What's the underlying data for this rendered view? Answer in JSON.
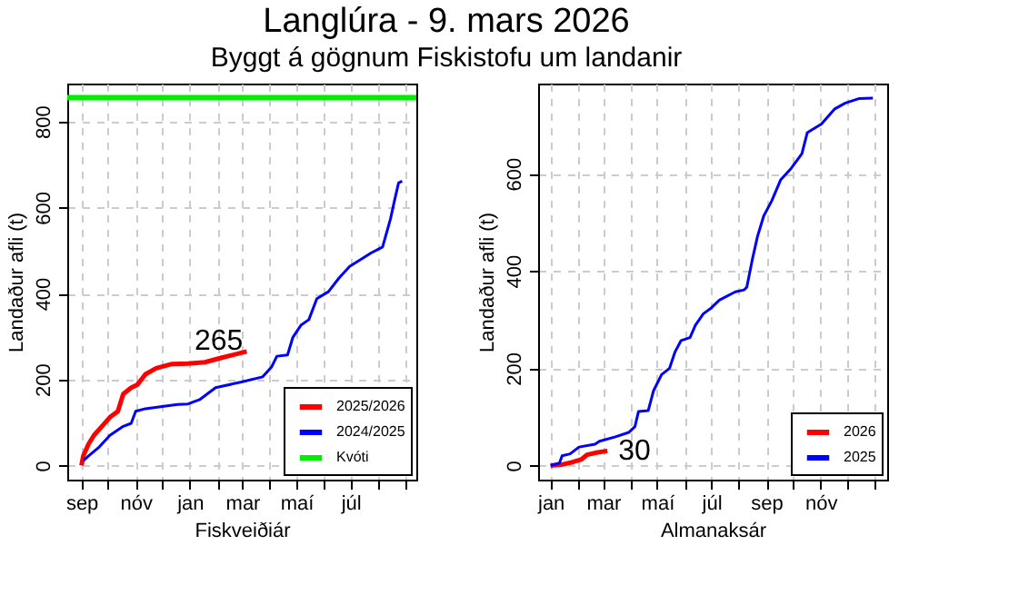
{
  "chart_data": [
    {
      "type": "line",
      "title": "Langlúra -  9. mars 2026",
      "subtitle": "Byggt á gögnum Fiskistofu um landanir",
      "xlabel": "Fiskveiðiár",
      "ylabel": "Landaður afli (t)",
      "xlim": [
        "2025-08-16",
        "2026-09-13"
      ],
      "ylim": [
        -33,
        888
      ],
      "xticks": [
        {
          "value": "2025-09-01",
          "label": "sep"
        },
        {
          "value": "2025-10-01",
          "label": null
        },
        {
          "value": "2025-11-01",
          "label": "nóv"
        },
        {
          "value": "2025-12-01",
          "label": null
        },
        {
          "value": "2026-01-01",
          "label": "jan"
        },
        {
          "value": "2026-02-01",
          "label": null
        },
        {
          "value": "2026-03-01",
          "label": "mar"
        },
        {
          "value": "2026-04-01",
          "label": null
        },
        {
          "value": "2026-05-01",
          "label": "maí"
        },
        {
          "value": "2026-06-01",
          "label": null
        },
        {
          "value": "2026-07-01",
          "label": "júl"
        },
        {
          "value": "2026-08-01",
          "label": null
        },
        {
          "value": "2026-09-01",
          "label": null
        }
      ],
      "yticks": [
        0,
        200,
        400,
        600,
        800
      ],
      "grid": true,
      "legend": "bottom right",
      "marker": "none",
      "line_style": "solid",
      "series": [
        {
          "name": "2025/2026",
          "color": "#ff0000",
          "x": [
            "2025-09-01",
            "2025-09-03",
            "2025-09-09",
            "2025-09-15",
            "2025-09-24",
            "2025-10-03",
            "2025-10-12",
            "2025-10-18",
            "2025-10-27",
            "2025-11-03",
            "2025-11-12",
            "2025-11-24",
            "2025-12-12",
            "2025-12-30",
            "2026-01-18",
            "2026-02-05",
            "2026-03-06"
          ],
          "values": [
            0,
            22,
            50,
            70,
            91,
            112,
            126,
            166,
            181,
            188,
            212,
            226,
            236,
            237,
            240,
            250,
            265
          ]
        },
        {
          "name": "2024/2025",
          "color": "#0000ff",
          "x": [
            "2025-09-03",
            "2025-09-09",
            "2025-09-21",
            "2025-10-03",
            "2025-10-18",
            "2025-10-27",
            "2025-11-01",
            "2025-11-12",
            "2025-12-18",
            "2025-12-30",
            "2026-01-12",
            "2026-01-30",
            "2026-02-28",
            "2026-03-24",
            "2026-04-03",
            "2026-04-09",
            "2026-04-21",
            "2026-04-27",
            "2026-05-06",
            "2026-05-15",
            "2026-05-24",
            "2026-06-06",
            "2026-06-18",
            "2026-06-30",
            "2026-07-24",
            "2026-08-06",
            "2026-08-15",
            "2026-08-19",
            "2026-08-24",
            "2026-08-28"
          ],
          "values": [
            11,
            22,
            43,
            70,
            91,
            98,
            126,
            132,
            142,
            143,
            153,
            181,
            194,
            206,
            229,
            254,
            257,
            298,
            326,
            339,
            388,
            404,
            436,
            463,
            494,
            508,
            574,
            612,
            657,
            661
          ]
        }
      ],
      "ref_lines": [
        {
          "axis": "y",
          "value": 855,
          "label": "Kvóti",
          "color": "#00ee00"
        }
      ],
      "annotations": [
        {
          "text": "265",
          "x": "2026-03-06",
          "y": 265
        }
      ]
    },
    {
      "type": "line",
      "xlabel": "Almanaksár",
      "ylabel": "Landaður afli (t)",
      "xlim": [
        "2024-12-18",
        "2026-01-15"
      ],
      "ylim": [
        -29,
        785
      ],
      "xticks": [
        {
          "value": "2025-01-01",
          "label": "jan"
        },
        {
          "value": "2025-02-01",
          "label": null
        },
        {
          "value": "2025-03-01",
          "label": "mar"
        },
        {
          "value": "2025-04-01",
          "label": null
        },
        {
          "value": "2025-05-01",
          "label": "maí"
        },
        {
          "value": "2025-06-01",
          "label": null
        },
        {
          "value": "2025-07-01",
          "label": "júl"
        },
        {
          "value": "2025-08-01",
          "label": null
        },
        {
          "value": "2025-09-01",
          "label": "sep"
        },
        {
          "value": "2025-10-01",
          "label": null
        },
        {
          "value": "2025-11-01",
          "label": "nóv"
        },
        {
          "value": "2025-12-01",
          "label": null
        },
        {
          "value": "2026-01-01",
          "label": null
        }
      ],
      "yticks": [
        0,
        200,
        400,
        600
      ],
      "grid": true,
      "legend": "bottom right",
      "marker": "none",
      "line_style": "solid",
      "series": [
        {
          "name": "2026",
          "color": "#ff0000",
          "x": [
            "2025-01-01",
            "2025-01-14",
            "2025-01-26",
            "2025-02-05",
            "2025-02-11",
            "2025-02-23",
            "2025-03-06"
          ],
          "values": [
            0,
            2,
            7,
            13,
            22,
            27,
            30
          ]
        },
        {
          "name": "2025",
          "color": "#0000ff",
          "x": [
            "2025-01-01",
            "2025-01-11",
            "2025-01-14",
            "2025-01-23",
            "2025-02-02",
            "2025-02-20",
            "2025-02-25",
            "2025-03-15",
            "2025-03-30",
            "2025-04-06",
            "2025-04-10",
            "2025-04-21",
            "2025-04-27",
            "2025-05-06",
            "2025-05-15",
            "2025-05-21",
            "2025-05-28",
            "2025-06-07",
            "2025-06-13",
            "2025-06-22",
            "2025-07-01",
            "2025-07-10",
            "2025-07-28",
            "2025-08-07",
            "2025-08-10",
            "2025-08-16",
            "2025-08-22",
            "2025-08-29",
            "2025-09-07",
            "2025-09-17",
            "2025-09-29",
            "2025-10-11",
            "2025-10-17",
            "2025-11-02",
            "2025-11-17",
            "2025-11-29",
            "2025-12-14",
            "2025-12-30"
          ],
          "values": [
            0,
            5,
            20,
            24,
            38,
            44,
            50,
            59,
            68,
            80,
            111,
            113,
            154,
            187,
            200,
            233,
            257,
            263,
            288,
            312,
            324,
            340,
            357,
            361,
            367,
            422,
            471,
            513,
            544,
            587,
            611,
            641,
            684,
            702,
            733,
            745,
            754,
            755
          ]
        }
      ],
      "annotations": [
        {
          "text": "30",
          "x": "2025-03-06",
          "y": 30
        }
      ]
    }
  ]
}
